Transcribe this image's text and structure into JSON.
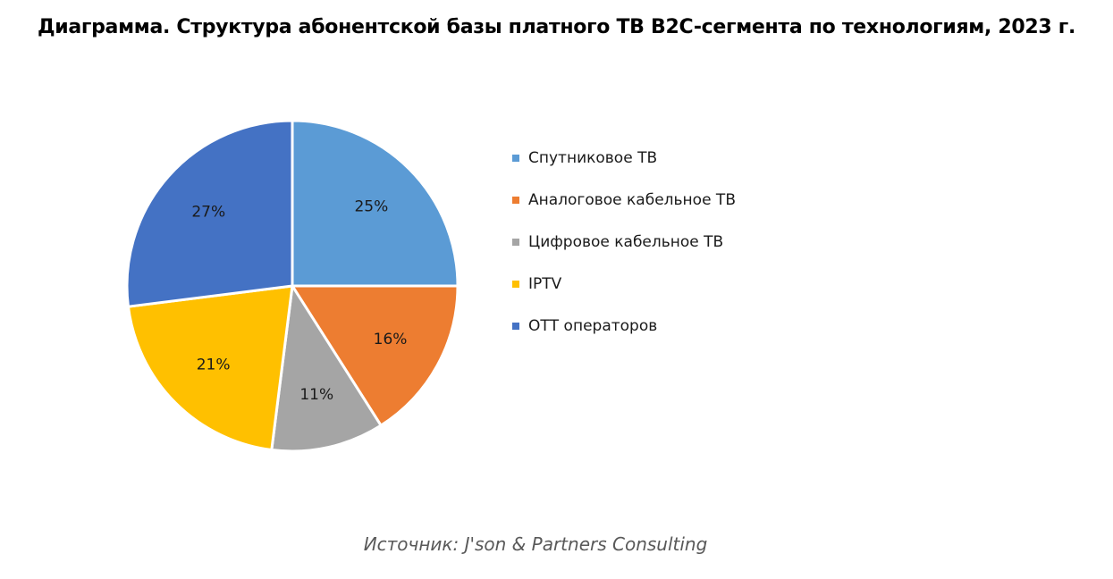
{
  "chart_data": {
    "type": "pie",
    "title": "Диаграмма. Структура абонентской базы платного ТВ B2C-сегмента по технологиям, 2023 г.",
    "categories": [
      "Спутниковое ТВ",
      "Аналоговое кабельное ТВ",
      "Цифровое кабельное ТВ",
      "IPTV",
      "ОТТ операторов"
    ],
    "values": [
      25,
      16,
      11,
      21,
      27
    ],
    "labels": [
      "25%",
      "16%",
      "11%",
      "21%",
      "27%"
    ],
    "colors": [
      "#5B9BD5",
      "#ED7D31",
      "#A5A5A5",
      "#FFC000",
      "#4472C4"
    ],
    "legend_position": "right",
    "start": "12 o'clock",
    "direction": "clockwise"
  },
  "source": "Источник: J'son & Partners Consulting"
}
